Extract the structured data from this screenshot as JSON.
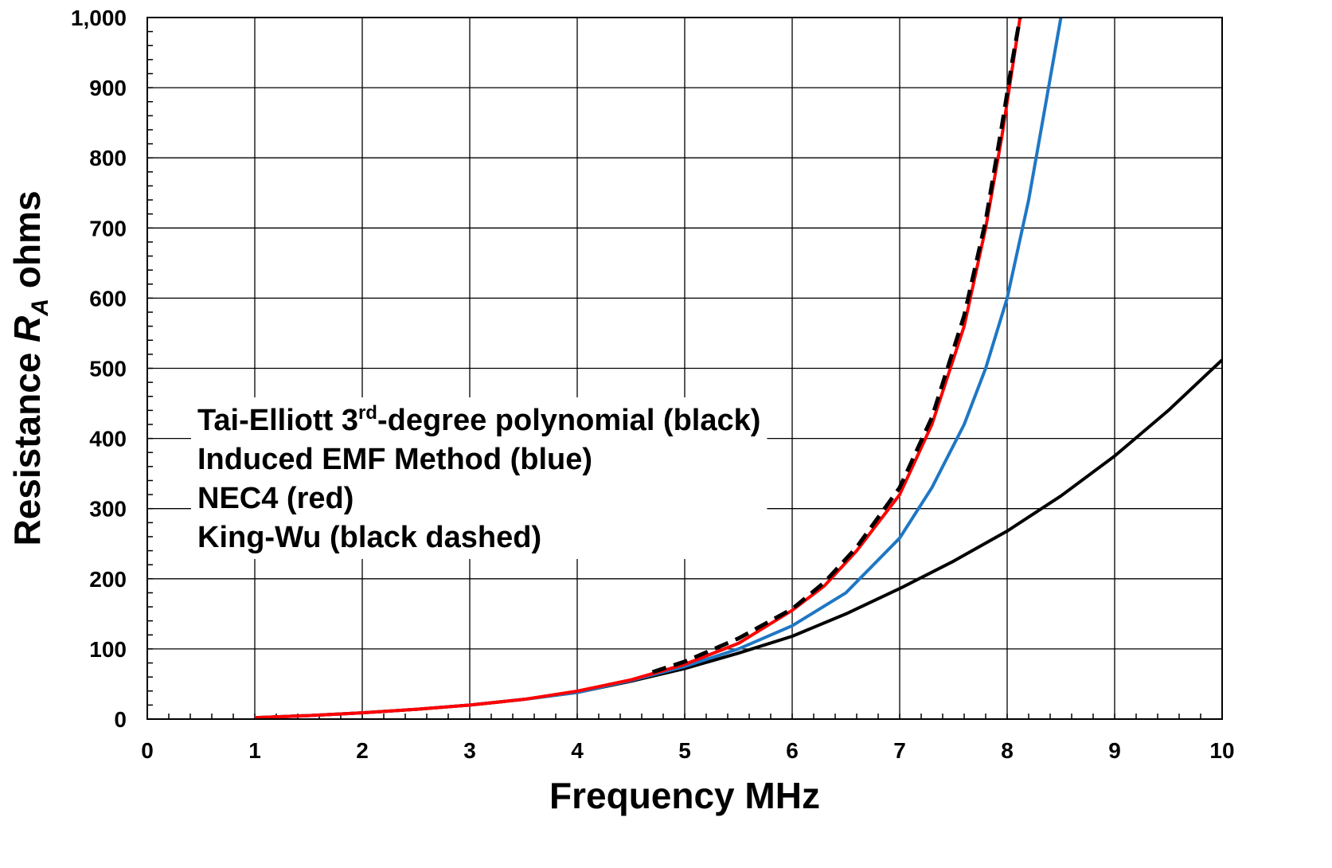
{
  "chart_data": {
    "type": "line",
    "xlabel": "Frequency MHz",
    "ylabel": {
      "prefix": "Resistance ",
      "symbol": "R",
      "subscript": "A",
      "suffix": " ohms"
    },
    "xlim": [
      0,
      10
    ],
    "ylim": [
      0,
      1000
    ],
    "x_ticks": [
      "0",
      "1",
      "2",
      "3",
      "4",
      "5",
      "6",
      "7",
      "8",
      "9",
      "10"
    ],
    "y_ticks": [
      "0",
      "100",
      "200",
      "300",
      "400",
      "500",
      "600",
      "700",
      "800",
      "900",
      "1,000"
    ],
    "grid": true,
    "legend_position": "center-left",
    "legend_lines": [
      {
        "before": "Tai-Elliott 3",
        "sup": "rd",
        "after": "-degree polynomial (black)"
      },
      {
        "before": "Induced EMF Method (blue)",
        "sup": "",
        "after": ""
      },
      {
        "before": "NEC4 (red)",
        "sup": "",
        "after": ""
      },
      {
        "before": "King-Wu (black dashed)",
        "sup": "",
        "after": ""
      }
    ],
    "series": [
      {
        "color": "#000000",
        "style": "solid",
        "x": [
          1,
          1.5,
          2,
          2.5,
          3,
          3.5,
          4,
          4.5,
          5,
          5.5,
          6,
          6.5,
          7,
          7.5,
          8,
          8.5,
          9,
          9.5,
          10
        ],
        "y": [
          2,
          5,
          9,
          14,
          20,
          28,
          38,
          54,
          72,
          94,
          118,
          150,
          186,
          225,
          268,
          318,
          375,
          440,
          512
        ]
      },
      {
        "color": "#1f77c4",
        "style": "solid",
        "x": [
          1,
          1.5,
          2,
          2.5,
          3,
          3.5,
          4,
          4.5,
          5,
          5.5,
          6,
          6.5,
          7,
          7.3,
          7.6,
          7.8,
          8,
          8.2,
          8.35,
          8.5
        ],
        "y": [
          2,
          5,
          9,
          14,
          20,
          28,
          38,
          55,
          75,
          100,
          133,
          180,
          258,
          330,
          420,
          500,
          600,
          740,
          870,
          1000
        ]
      },
      {
        "color": "#ff0000",
        "style": "solid",
        "x": [
          1,
          1.5,
          2,
          2.5,
          3,
          3.5,
          4,
          4.5,
          5,
          5.5,
          6,
          6.3,
          6.6,
          7,
          7.3,
          7.6,
          7.8,
          7.95,
          8.05,
          8.12
        ],
        "y": [
          2,
          5,
          9,
          14,
          20,
          28,
          40,
          56,
          78,
          108,
          155,
          190,
          240,
          320,
          420,
          560,
          700,
          830,
          930,
          1000
        ]
      },
      {
        "color": "#000000",
        "style": "dashed",
        "x": [
          4.7,
          5,
          5.5,
          6,
          6.3,
          6.6,
          7,
          7.3,
          7.6,
          7.8,
          7.95,
          8.05,
          8.12
        ],
        "y": [
          67,
          82,
          115,
          157,
          195,
          245,
          330,
          430,
          575,
          710,
          845,
          940,
          1000
        ]
      }
    ]
  }
}
